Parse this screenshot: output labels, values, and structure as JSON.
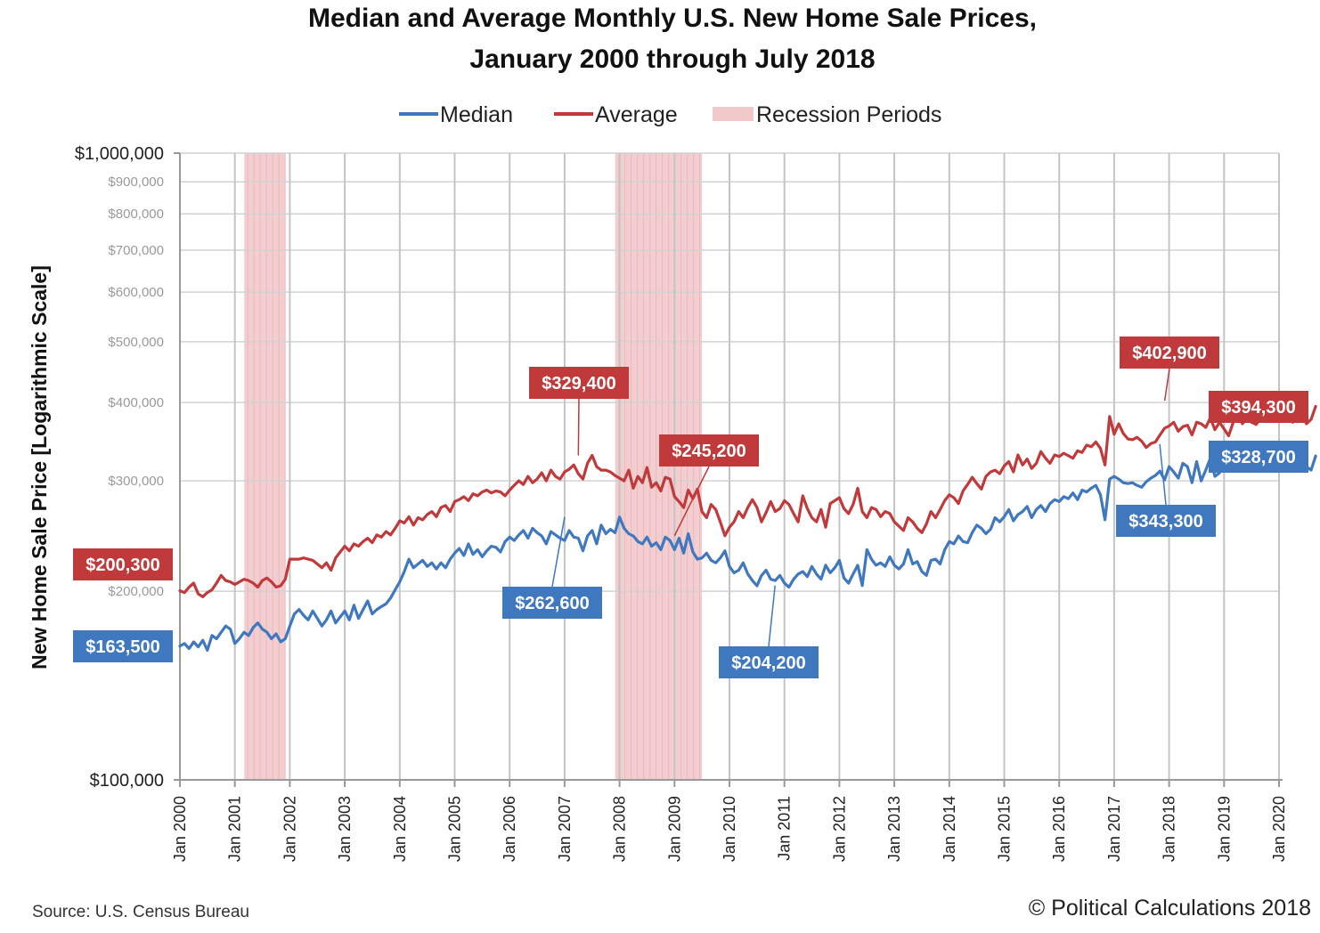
{
  "chart_data": {
    "type": "line",
    "title_line1": "Median and Average Monthly U.S. New Home Sale Prices,",
    "title_line2": "January 2000 through July 2018",
    "ylabel": "New Home Sale Price [Logarithmic Scale]",
    "yscale": "log",
    "ylim": [
      100000,
      1000000
    ],
    "xlim": [
      2000.0,
      2020.0
    ],
    "grid": true,
    "legend_position": "top-center",
    "legend": [
      {
        "name": "Median",
        "color": "#3f78bf",
        "kind": "line"
      },
      {
        "name": "Average",
        "color": "#c0393b",
        "kind": "line"
      },
      {
        "name": "Recession Periods",
        "color": "#f2c9cb",
        "kind": "area"
      }
    ],
    "y_ticks": [
      {
        "value": 1000000,
        "label": "$1,000,000",
        "major": true
      },
      {
        "value": 900000,
        "label": "$900,000",
        "major": false
      },
      {
        "value": 800000,
        "label": "$800,000",
        "major": false
      },
      {
        "value": 700000,
        "label": "$700,000",
        "major": false
      },
      {
        "value": 600000,
        "label": "$600,000",
        "major": false
      },
      {
        "value": 500000,
        "label": "$500,000",
        "major": false
      },
      {
        "value": 400000,
        "label": "$400,000",
        "major": false
      },
      {
        "value": 300000,
        "label": "$300,000",
        "major": false
      },
      {
        "value": 200000,
        "label": "$200,000",
        "major": false
      },
      {
        "value": 100000,
        "label": "$100,000",
        "major": true
      }
    ],
    "x_ticks": [
      {
        "value": 2000,
        "label": "Jan 2000"
      },
      {
        "value": 2001,
        "label": "Jan 2001"
      },
      {
        "value": 2002,
        "label": "Jan 2002"
      },
      {
        "value": 2003,
        "label": "Jan 2003"
      },
      {
        "value": 2004,
        "label": "Jan 2004"
      },
      {
        "value": 2005,
        "label": "Jan 2005"
      },
      {
        "value": 2006,
        "label": "Jan 2006"
      },
      {
        "value": 2007,
        "label": "Jan 2007"
      },
      {
        "value": 2008,
        "label": "Jan 2008"
      },
      {
        "value": 2009,
        "label": "Jan 2009"
      },
      {
        "value": 2010,
        "label": "Jan 2010"
      },
      {
        "value": 2011,
        "label": "Jan 2011"
      },
      {
        "value": 2012,
        "label": "Jan 2012"
      },
      {
        "value": 2013,
        "label": "Jan 2013"
      },
      {
        "value": 2014,
        "label": "Jan 2014"
      },
      {
        "value": 2015,
        "label": "Jan 2015"
      },
      {
        "value": 2016,
        "label": "Jan 2016"
      },
      {
        "value": 2017,
        "label": "Jan 2017"
      },
      {
        "value": 2018,
        "label": "Jan 2018"
      },
      {
        "value": 2019,
        "label": "Jan 2019"
      },
      {
        "value": 2020,
        "label": "Jan 2020"
      }
    ],
    "recessions": [
      {
        "start": 2001.17,
        "end": 2001.92
      },
      {
        "start": 2007.92,
        "end": 2009.5
      }
    ],
    "series": [
      {
        "name": "Median",
        "color": "#3f78bf",
        "start": 2000.0,
        "step_months": 1,
        "values": [
          163500,
          165000,
          162000,
          166000,
          163000,
          167000,
          161000,
          170000,
          168000,
          172000,
          176000,
          174000,
          165000,
          168000,
          172000,
          170000,
          175000,
          178000,
          174000,
          172000,
          168000,
          171000,
          166000,
          168000,
          176000,
          184000,
          187000,
          183000,
          180000,
          186000,
          181000,
          176000,
          180000,
          186000,
          178000,
          182000,
          186000,
          180000,
          190000,
          181000,
          187000,
          193000,
          184000,
          187000,
          189000,
          191000,
          195000,
          201000,
          207000,
          215000,
          225000,
          218000,
          221000,
          224000,
          219000,
          222000,
          217000,
          222000,
          218000,
          225000,
          230000,
          234000,
          228000,
          238000,
          229000,
          233000,
          227000,
          232000,
          236000,
          235000,
          231000,
          240000,
          244000,
          241000,
          246000,
          250000,
          243000,
          252000,
          248000,
          245000,
          238000,
          249000,
          246000,
          243000,
          241000,
          250000,
          244000,
          243000,
          232000,
          245000,
          250000,
          238000,
          255000,
          247000,
          251000,
          248000,
          262600,
          252000,
          247000,
          245000,
          240000,
          238000,
          244000,
          236000,
          239000,
          233000,
          244000,
          241000,
          233000,
          243000,
          230000,
          247000,
          231000,
          225000,
          226000,
          230000,
          224000,
          222000,
          226000,
          232000,
          219000,
          214000,
          216000,
          222000,
          213000,
          208000,
          204000,
          212000,
          216000,
          209000,
          208000,
          212000,
          206000,
          203000,
          209000,
          213000,
          215000,
          211000,
          219000,
          213000,
          209000,
          220000,
          214000,
          218000,
          224000,
          210000,
          206000,
          213000,
          220000,
          204200,
          233000,
          225000,
          220000,
          222000,
          219000,
          227000,
          220000,
          217000,
          221000,
          233000,
          221000,
          223000,
          215000,
          212000,
          224000,
          225000,
          221000,
          233000,
          240000,
          238000,
          245000,
          240000,
          239000,
          248000,
          255000,
          252000,
          247000,
          251000,
          262000,
          258000,
          263000,
          270000,
          259000,
          265000,
          268000,
          273000,
          262000,
          270000,
          274000,
          268000,
          276000,
          280000,
          278000,
          283000,
          281000,
          287000,
          280000,
          290000,
          288000,
          292000,
          295000,
          285000,
          260000,
          302000,
          305000,
          302000,
          298000,
          297000,
          298000,
          295000,
          293000,
          299000,
          303000,
          306000,
          311000,
          301000,
          316000,
          310000,
          303000,
          320000,
          316000,
          298000,
          322000,
          300000,
          312000,
          326000,
          305000,
          309000,
          323000,
          334000,
          318000,
          313000,
          315000,
          321000,
          313000,
          326000,
          318000,
          328000,
          320000,
          331000,
          343300,
          338000,
          329000,
          327000,
          333000,
          320000,
          316000,
          312000,
          328700
        ]
      },
      {
        "name": "Average",
        "color": "#c0393b",
        "start": 2000.0,
        "step_months": 1,
        "values": [
          200300,
          199000,
          203000,
          206000,
          198000,
          196000,
          199000,
          201000,
          206000,
          212000,
          208000,
          207000,
          205000,
          207000,
          209000,
          208000,
          206000,
          203000,
          208000,
          210000,
          207000,
          203000,
          204000,
          209000,
          225000,
          225000,
          225000,
          226000,
          225000,
          224000,
          221000,
          218000,
          222000,
          216000,
          226000,
          231000,
          236000,
          232000,
          238000,
          236000,
          240000,
          243000,
          239000,
          246000,
          244000,
          249000,
          246000,
          252000,
          259000,
          257000,
          263000,
          255000,
          262000,
          260000,
          265000,
          268000,
          263000,
          272000,
          274000,
          268000,
          278000,
          280000,
          283000,
          279000,
          286000,
          284000,
          288000,
          290000,
          287000,
          289000,
          288000,
          284000,
          290000,
          295000,
          300000,
          296000,
          305000,
          298000,
          302000,
          309000,
          300000,
          312000,
          305000,
          302000,
          310000,
          313000,
          318000,
          308000,
          302000,
          320000,
          329400,
          316000,
          312000,
          312000,
          310000,
          306000,
          303000,
          300000,
          312000,
          292000,
          305000,
          298000,
          315000,
          293000,
          298000,
          289000,
          304000,
          302000,
          283000,
          278000,
          272000,
          290000,
          281000,
          291000,
          268000,
          262000,
          275000,
          270000,
          258000,
          245200,
          253000,
          258000,
          268000,
          262000,
          272000,
          280000,
          272000,
          258000,
          267000,
          278000,
          268000,
          271000,
          279000,
          275000,
          266000,
          258000,
          284000,
          271000,
          262000,
          258000,
          270000,
          253000,
          276000,
          279000,
          282000,
          271000,
          266000,
          275000,
          292000,
          268000,
          262000,
          272000,
          270000,
          263000,
          268000,
          266000,
          258000,
          254000,
          250000,
          262000,
          258000,
          252000,
          248000,
          256000,
          268000,
          262000,
          270000,
          279000,
          285000,
          282000,
          276000,
          289000,
          296000,
          304000,
          297000,
          291000,
          305000,
          310000,
          312000,
          308000,
          317000,
          322000,
          310000,
          330000,
          318000,
          325000,
          314000,
          320000,
          334000,
          326000,
          320000,
          330000,
          328000,
          332000,
          329000,
          326000,
          335000,
          333000,
          342000,
          340000,
          346000,
          338000,
          318000,
          380000,
          356000,
          370000,
          357000,
          350000,
          349000,
          352000,
          347000,
          339000,
          344000,
          346000,
          355000,
          364000,
          367000,
          372000,
          360000,
          366000,
          368000,
          355000,
          372000,
          370000,
          365000,
          378000,
          362000,
          372000,
          363000,
          354000,
          372000,
          385000,
          370000,
          378000,
          372000,
          369000,
          378000,
          374000,
          381000,
          391000,
          402900,
          391000,
          380000,
          372000,
          376000,
          385000,
          370000,
          376000,
          394300
        ]
      }
    ],
    "callouts": [
      {
        "series": "Average",
        "text": "$200,300",
        "x": 2000.0,
        "value": 200300
      },
      {
        "series": "Median",
        "text": "$163,500",
        "x": 2000.0,
        "value": 163500
      },
      {
        "series": "Average",
        "text": "$329,400",
        "x": 2007.25,
        "value": 329400
      },
      {
        "series": "Median",
        "text": "$262,600",
        "x": 2007.0,
        "value": 262600
      },
      {
        "series": "Average",
        "text": "$245,200",
        "x": 2009.0,
        "value": 245200
      },
      {
        "series": "Median",
        "text": "$204,200",
        "x": 2010.83,
        "value": 204200
      },
      {
        "series": "Average",
        "text": "$402,900",
        "x": 2017.92,
        "value": 402900
      },
      {
        "series": "Median",
        "text": "$343,300",
        "x": 2017.83,
        "value": 343300
      },
      {
        "series": "Average",
        "text": "$394,300",
        "x": 2018.5,
        "value": 394300
      },
      {
        "series": "Median",
        "text": "$328,700",
        "x": 2018.5,
        "value": 328700
      }
    ],
    "source": "Source: U.S. Census Bureau",
    "copyright": "© Political Calculations 2018"
  }
}
